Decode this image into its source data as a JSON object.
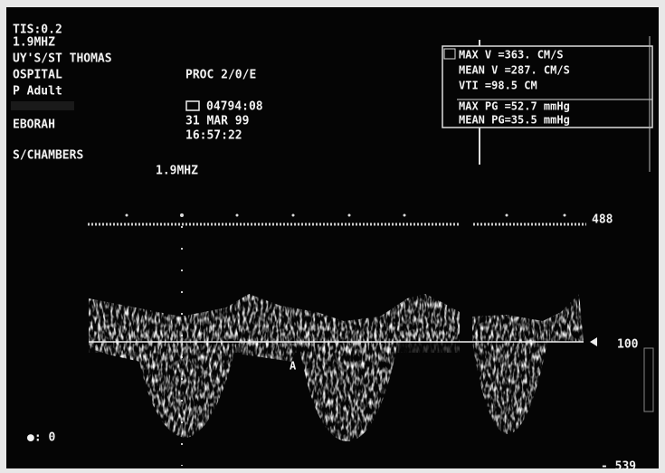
{
  "header": {
    "lines": [
      "TIS:0.2",
      "1.9MHZ",
      "UY'S/ST THOMAS",
      "OSPITAL",
      "P Adult",
      "EBORAH",
      "S/CHAMBERS"
    ],
    "procedure": "PROC 2/0/E",
    "study_id": "04794:08",
    "date": "31 MAR 99",
    "time": "16:57:22",
    "frequency": "1.9MHZ"
  },
  "measurements": [
    "MAX V =363. CM/S",
    "MEAN V =287. CM/S",
    "VTI =98.5 CM",
    "MAX PG =52.7 mmHg",
    "MEAN PG=35.5 mmHg"
  ],
  "scale": {
    "top": "488",
    "middle": "100",
    "bottom": "- 539"
  },
  "marker": "A",
  "footer": "●: 0"
}
